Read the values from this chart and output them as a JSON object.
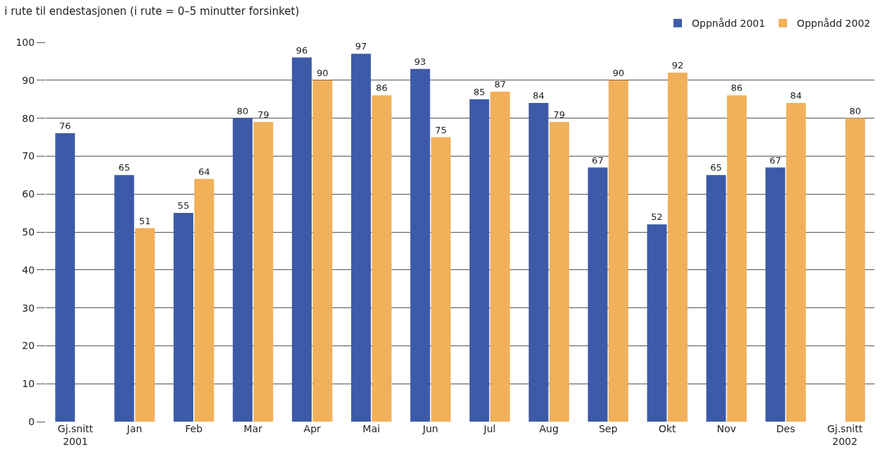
{
  "chart_data": {
    "type": "bar",
    "title": "i rute til endestasjonen (i rute = 0–5 minutter forsinket)",
    "categories": [
      "Gj.snitt\n2001",
      "Jan",
      "Feb",
      "Mar",
      "Apr",
      "Mai",
      "Jun",
      "Jul",
      "Aug",
      "Sep",
      "Okt",
      "Nov",
      "Des",
      "Gj.snitt\n2002"
    ],
    "series": [
      {
        "name": "Oppnådd 2001",
        "color": "#3d5aa8",
        "values": [
          76,
          65,
          55,
          80,
          96,
          97,
          93,
          85,
          84,
          67,
          52,
          65,
          67,
          null
        ]
      },
      {
        "name": "Oppnådd 2002",
        "color": "#f2b05a",
        "values": [
          null,
          51,
          64,
          79,
          90,
          86,
          75,
          87,
          79,
          90,
          92,
          86,
          84,
          80
        ]
      }
    ],
    "ylim": [
      0,
      100
    ],
    "yticks": [
      0,
      10,
      20,
      30,
      40,
      50,
      60,
      70,
      80,
      90,
      100
    ],
    "grid": "y",
    "legend": "top right",
    "data_labels": true
  }
}
